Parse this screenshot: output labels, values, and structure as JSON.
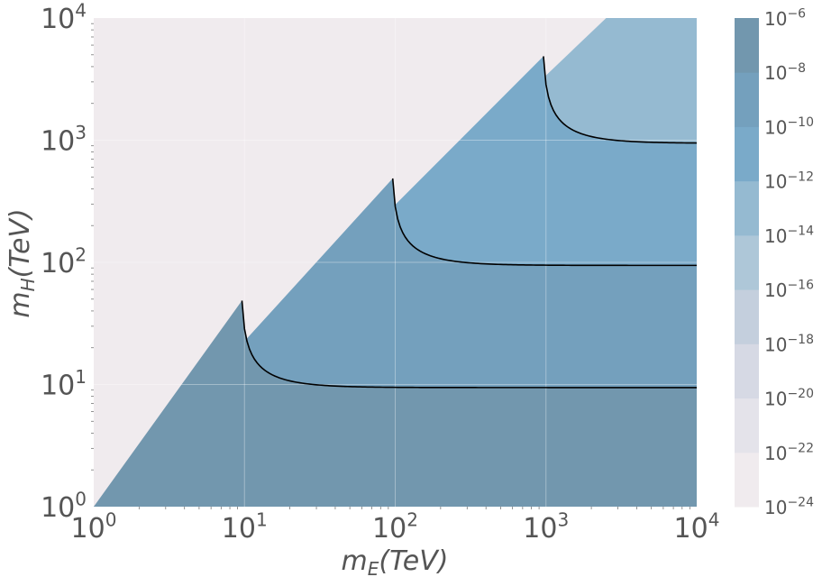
{
  "chart_data": {
    "type": "contour",
    "xlabel": {
      "base": "m",
      "sub": "E",
      "rest": "(TeV)"
    },
    "ylabel": {
      "base": "m",
      "sub": "H",
      "rest": "(TeV)"
    },
    "x_scale": "log",
    "y_scale": "log",
    "xlim": [
      1,
      10000
    ],
    "ylim": [
      1,
      10000
    ],
    "x_ticks": [
      {
        "base": "10",
        "exp": "0",
        "value": 1
      },
      {
        "base": "10",
        "exp": "1",
        "value": 10
      },
      {
        "base": "10",
        "exp": "2",
        "value": 100
      },
      {
        "base": "10",
        "exp": "3",
        "value": 1000
      },
      {
        "base": "10",
        "exp": "4",
        "value": 10000
      }
    ],
    "y_ticks": [
      {
        "base": "10",
        "exp": "0",
        "value": 1
      },
      {
        "base": "10",
        "exp": "1",
        "value": 10
      },
      {
        "base": "10",
        "exp": "2",
        "value": 100
      },
      {
        "base": "10",
        "exp": "3",
        "value": 1000
      },
      {
        "base": "10",
        "exp": "4",
        "value": 10000
      }
    ],
    "contour_levels_log10": [
      -24,
      -22,
      -20,
      -18,
      -16,
      -14,
      -12,
      -10,
      -8,
      -6
    ],
    "contour_line_levels_log10": [
      -22,
      -20,
      -18,
      -16,
      -14,
      -12,
      -10,
      -8
    ],
    "colorbar_ticks": [
      {
        "base": "10",
        "exp": "−6"
      },
      {
        "base": "10",
        "exp": "−8"
      },
      {
        "base": "10",
        "exp": "−10"
      },
      {
        "base": "10",
        "exp": "−12"
      },
      {
        "base": "10",
        "exp": "−14"
      },
      {
        "base": "10",
        "exp": "−16"
      },
      {
        "base": "10",
        "exp": "−18"
      },
      {
        "base": "10",
        "exp": "−20"
      },
      {
        "base": "10",
        "exp": "−22"
      },
      {
        "base": "10",
        "exp": "−24"
      }
    ],
    "band_colors": [
      "#f0ebee",
      "#e4e3ea",
      "#d6d9e4",
      "#c4cfdd",
      "#aec7d8",
      "#95bad1",
      "#7aaac9",
      "#74a0bd",
      "#7297ae"
    ],
    "grid": true,
    "line_color": "#000000"
  }
}
